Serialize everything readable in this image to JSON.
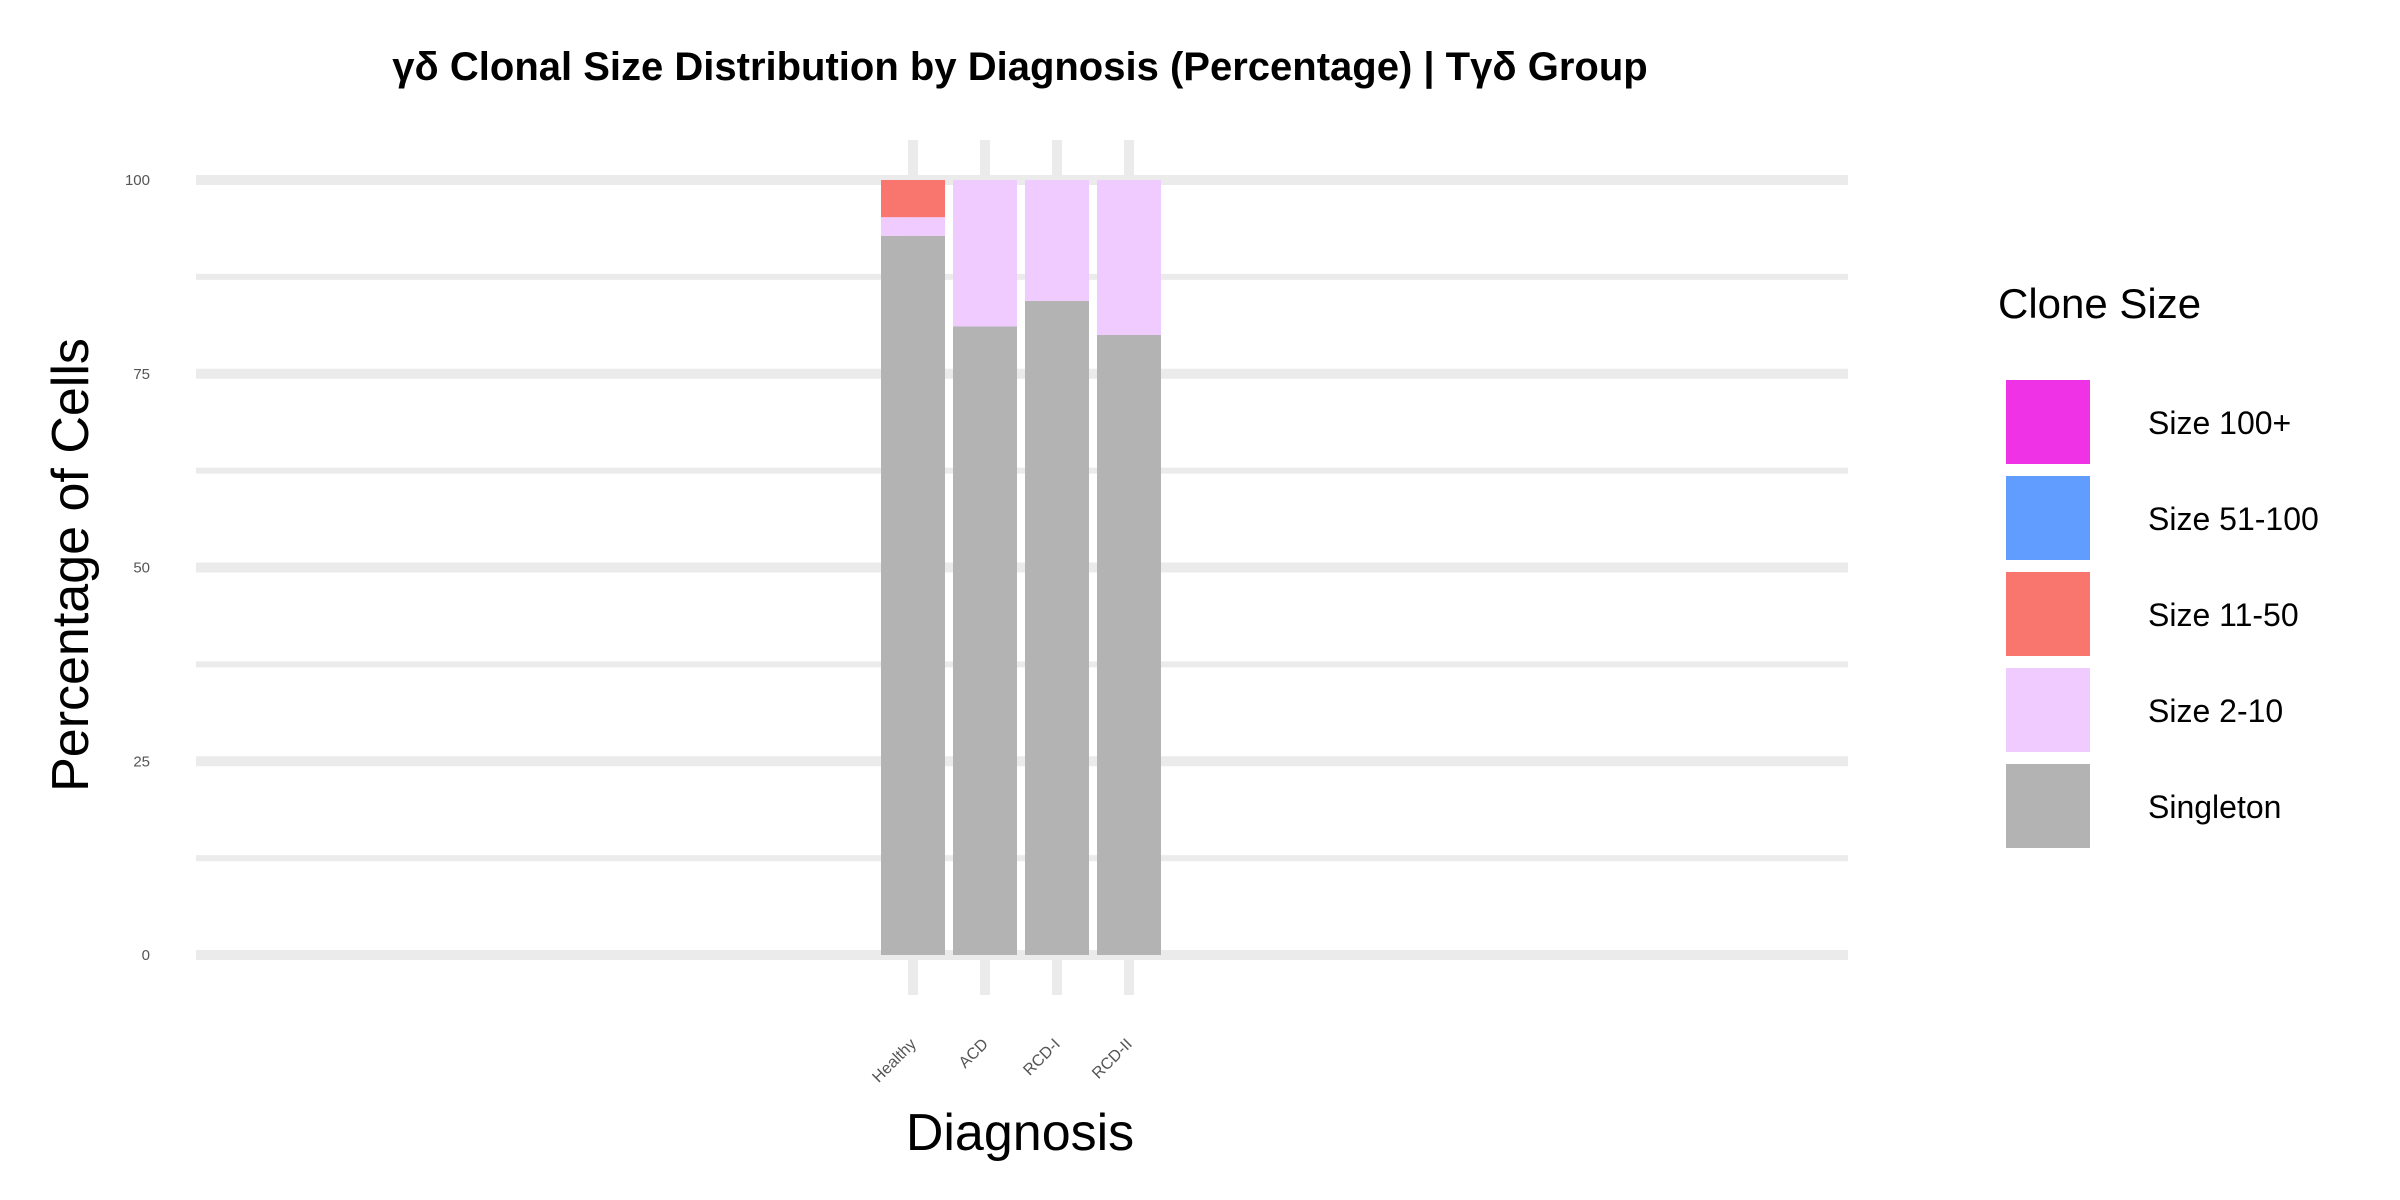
{
  "chart_data": {
    "type": "bar",
    "stacked": true,
    "title": "γδ Clonal Size Distribution by Diagnosis (Percentage) | Tγδ Group",
    "xlabel": "Diagnosis",
    "ylabel": "Percentage of Cells",
    "ylim": [
      0,
      100
    ],
    "yticks": [
      "0",
      "25",
      "50",
      "75",
      "100"
    ],
    "grid": true,
    "legend_position": "right",
    "categories": [
      "Healthy",
      "ACD",
      "RCD-I",
      "RCD-II"
    ],
    "series": [
      {
        "name": "Singleton",
        "color": "#B3B3B3",
        "values": [
          92.8,
          81.1,
          84.4,
          80.0
        ]
      },
      {
        "name": "Size 2-10",
        "color": "#F0CBFF",
        "values": [
          2.4,
          18.9,
          15.6,
          20.0
        ]
      },
      {
        "name": "Size 11-50",
        "color": "#F8766D",
        "values": [
          4.8,
          0,
          0,
          0
        ]
      },
      {
        "name": "Size 51-100",
        "color": "#619CFF",
        "values": [
          0,
          0,
          0,
          0
        ]
      },
      {
        "name": "Size 100+",
        "color": "#F032E6",
        "values": [
          0,
          0,
          0,
          0
        ]
      }
    ],
    "legend": {
      "title": "Clone Size",
      "items": [
        "Size 100+",
        "Size 51-100",
        "Size 11-50",
        "Size 2-10",
        "Singleton"
      ]
    }
  }
}
